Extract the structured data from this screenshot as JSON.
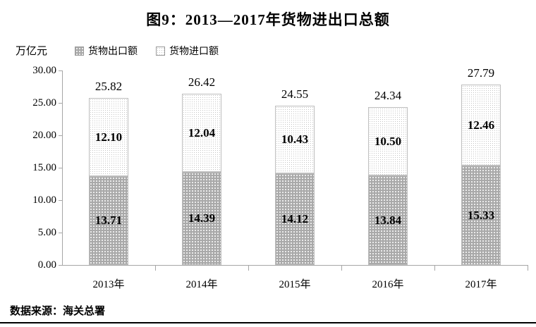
{
  "title": "图9：2013—2017年货物进出口总额",
  "source": "数据来源：海关总署",
  "colors": {
    "export_fill": "#a9a9a9",
    "export_dot": "#ffffff",
    "import_fill": "#ffffff",
    "import_dot": "#c3c3c3",
    "axis": "#a6a6a6",
    "text": "#000000",
    "bottom_rule": "#000000"
  },
  "chart_data": {
    "type": "bar",
    "stacked": true,
    "title": "图9：2013—2017年货物进出口总额",
    "xlabel": "",
    "ylabel": "万亿元",
    "ylim": [
      0,
      30
    ],
    "ytick_step": 5,
    "yticks": [
      "30.00",
      "25.00",
      "20.00",
      "15.00",
      "10.00",
      "5.00",
      "0.00"
    ],
    "grid": false,
    "legend_position": "top-left",
    "categories": [
      "2013年",
      "2014年",
      "2015年",
      "2016年",
      "2017年"
    ],
    "series": [
      {
        "name": "货物出口额",
        "values": [
          13.71,
          14.39,
          14.12,
          13.84,
          15.33
        ]
      },
      {
        "name": "货物进口额",
        "values": [
          12.1,
          12.04,
          10.43,
          10.5,
          12.46
        ]
      }
    ],
    "totals": [
      25.82,
      26.42,
      24.55,
      24.34,
      27.79
    ]
  }
}
